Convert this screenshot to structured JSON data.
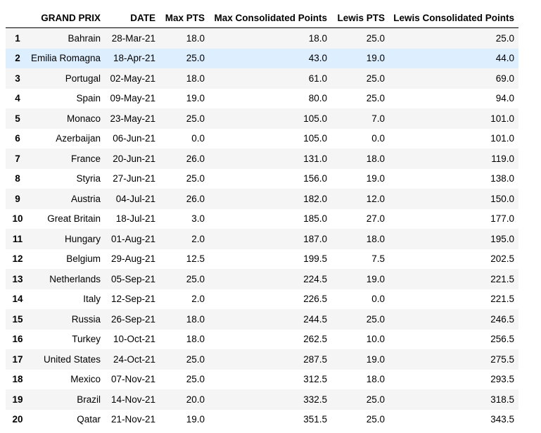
{
  "table": {
    "columns": [
      "",
      "GRAND PRIX",
      "DATE",
      "Max PTS",
      "Max Consolidated Points",
      "Lewis PTS",
      "Lewis Consolidated Points"
    ],
    "highlighted_row_index": 1,
    "rows": [
      [
        "1",
        "Bahrain",
        "28-Mar-21",
        "18.0",
        "18.0",
        "25.0",
        "25.0"
      ],
      [
        "2",
        "Emilia Romagna",
        "18-Apr-21",
        "25.0",
        "43.0",
        "19.0",
        "44.0"
      ],
      [
        "3",
        "Portugal",
        "02-May-21",
        "18.0",
        "61.0",
        "25.0",
        "69.0"
      ],
      [
        "4",
        "Spain",
        "09-May-21",
        "19.0",
        "80.0",
        "25.0",
        "94.0"
      ],
      [
        "5",
        "Monaco",
        "23-May-21",
        "25.0",
        "105.0",
        "7.0",
        "101.0"
      ],
      [
        "6",
        "Azerbaijan",
        "06-Jun-21",
        "0.0",
        "105.0",
        "0.0",
        "101.0"
      ],
      [
        "7",
        "France",
        "20-Jun-21",
        "26.0",
        "131.0",
        "18.0",
        "119.0"
      ],
      [
        "8",
        "Styria",
        "27-Jun-21",
        "25.0",
        "156.0",
        "19.0",
        "138.0"
      ],
      [
        "9",
        "Austria",
        "04-Jul-21",
        "26.0",
        "182.0",
        "12.0",
        "150.0"
      ],
      [
        "10",
        "Great Britain",
        "18-Jul-21",
        "3.0",
        "185.0",
        "27.0",
        "177.0"
      ],
      [
        "11",
        "Hungary",
        "01-Aug-21",
        "2.0",
        "187.0",
        "18.0",
        "195.0"
      ],
      [
        "12",
        "Belgium",
        "29-Aug-21",
        "12.5",
        "199.5",
        "7.5",
        "202.5"
      ],
      [
        "13",
        "Netherlands",
        "05-Sep-21",
        "25.0",
        "224.5",
        "19.0",
        "221.5"
      ],
      [
        "14",
        "Italy",
        "12-Sep-21",
        "2.0",
        "226.5",
        "0.0",
        "221.5"
      ],
      [
        "15",
        "Russia",
        "26-Sep-21",
        "18.0",
        "244.5",
        "25.0",
        "246.5"
      ],
      [
        "16",
        "Turkey",
        "10-Oct-21",
        "18.0",
        "262.5",
        "10.0",
        "256.5"
      ],
      [
        "17",
        "United States",
        "24-Oct-21",
        "25.0",
        "287.5",
        "19.0",
        "275.5"
      ],
      [
        "18",
        "Mexico",
        "07-Nov-21",
        "25.0",
        "312.5",
        "18.0",
        "293.5"
      ],
      [
        "19",
        "Brazil",
        "14-Nov-21",
        "20.0",
        "332.5",
        "25.0",
        "318.5"
      ],
      [
        "20",
        "Qatar",
        "21-Nov-21",
        "19.0",
        "351.5",
        "25.0",
        "343.5"
      ]
    ]
  }
}
